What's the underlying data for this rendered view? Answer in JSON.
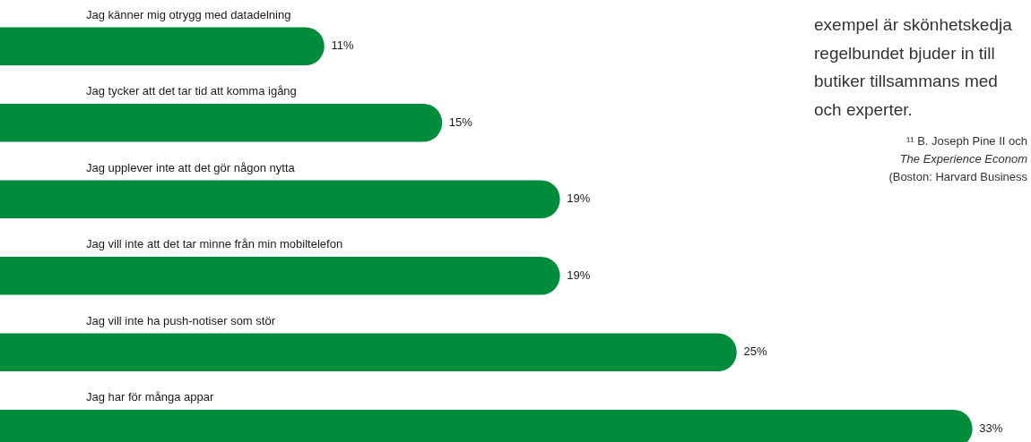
{
  "chart_data": {
    "type": "bar",
    "orientation": "horizontal",
    "categories": [
      "Jag känner mig otrygg med datadelning",
      "Jag tycker att det tar tid att komma igång",
      "Jag upplever inte att det gör någon nytta",
      "Jag vill inte att det tar minne från min mobiltelefon",
      "Jag vill inte ha push-notiser som stör",
      "Jag har för många appar"
    ],
    "values": [
      11,
      15,
      19,
      19,
      25,
      33
    ],
    "value_labels": [
      "11%",
      "15%",
      "19%",
      "19%",
      "25%",
      "33%"
    ],
    "color": "#008c3a",
    "legend": false,
    "tick_labels": false,
    "annotations": [
      "exempel är skönhetskedja",
      "regelbundet bjuder in till",
      "butiker tillsammans med",
      "och experter.",
      "¹¹ B. Joseph Pine II och",
      "The Experience Econom",
      "(Boston: Harvard Business"
    ]
  }
}
